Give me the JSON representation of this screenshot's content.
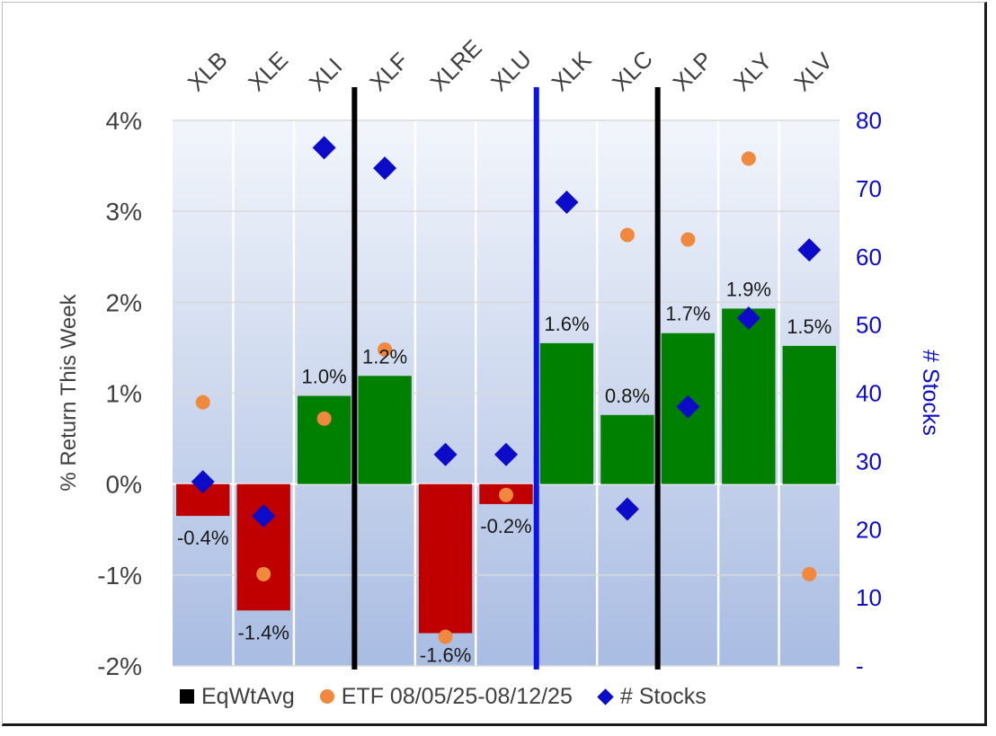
{
  "chart_data": {
    "type": "bar",
    "categories": [
      "XLB",
      "XLE",
      "XLI",
      "XLF",
      "XLRE",
      "XLU",
      "XLK",
      "XLC",
      "XLP",
      "XLY",
      "XLV"
    ],
    "series": [
      {
        "name": "EqWtAvg",
        "kind": "bar",
        "axis": "left",
        "values": [
          -0.35,
          -1.39,
          0.97,
          1.19,
          -1.64,
          -0.22,
          1.55,
          0.76,
          1.66,
          1.93,
          1.52
        ],
        "labels": [
          "-0.4%",
          "-1.4%",
          "1.0%",
          "1.2%",
          "-1.6%",
          "-0.2%",
          "1.6%",
          "0.8%",
          "1.7%",
          "1.9%",
          "1.5%"
        ]
      },
      {
        "name": "ETF 08/05/25-08/12/25",
        "kind": "scatter",
        "axis": "left",
        "values": [
          0.9,
          -0.99,
          0.72,
          1.48,
          -1.68,
          -0.12,
          null,
          2.74,
          2.69,
          3.58,
          -0.99
        ]
      },
      {
        "name": "# Stocks",
        "kind": "scatter",
        "axis": "right",
        "values": [
          27,
          22,
          76,
          73,
          31,
          31,
          68,
          23,
          38,
          51,
          61
        ]
      }
    ],
    "ylabel": "% Return This Week",
    "y2label": "# Stocks",
    "ylim": [
      -2,
      4
    ],
    "y2lim": [
      0,
      80
    ],
    "yticks": [
      "4%",
      "3%",
      "2%",
      "1%",
      "0%",
      "-1%",
      "-2%"
    ],
    "y2ticks": [
      "80",
      "70",
      "60",
      "50",
      "40",
      "30",
      "20",
      "10",
      "-"
    ],
    "dividers": [
      {
        "after_category": "XLI",
        "color": "#000000"
      },
      {
        "after_category": "XLU",
        "color": "#0a14e6"
      },
      {
        "after_category": "XLC",
        "color": "#000000"
      }
    ],
    "colors": {
      "positive_bar": "#008000",
      "negative_bar": "#c00000",
      "etf_marker": "#f0883d",
      "stocks_marker": "#0b0bc9",
      "left_axis_text": "#404040",
      "right_axis_text": "#0b0bc9",
      "plot_bg_top": "#f2f5fb",
      "plot_bg_bottom": "#a9bce2"
    },
    "legend": {
      "position": "bottom"
    }
  }
}
